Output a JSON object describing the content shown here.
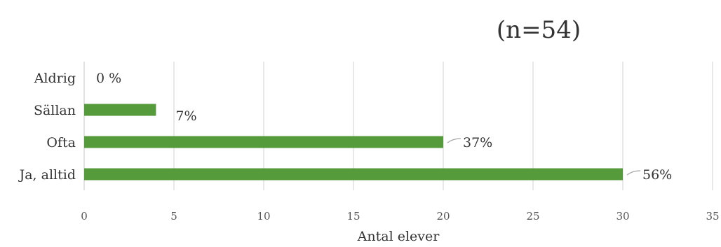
{
  "chart_data": {
    "type": "bar",
    "orientation": "horizontal",
    "title": "(n=54)",
    "xlabel": "Antal elever",
    "ylabel": "",
    "categories": [
      "Aldrig",
      "Sällan",
      "Ofta",
      "Ja, alltid"
    ],
    "values": [
      0,
      4,
      20,
      30
    ],
    "data_labels": [
      "0 %",
      "7%",
      "37%",
      "56%"
    ],
    "xlim": [
      0,
      35
    ],
    "xticks": [
      "0",
      "5",
      "10",
      "15",
      "20",
      "25",
      "30",
      "35"
    ],
    "grid": true,
    "legend": "none",
    "bar_color": "#559a3b",
    "grid_color": "#d9d9d9"
  }
}
